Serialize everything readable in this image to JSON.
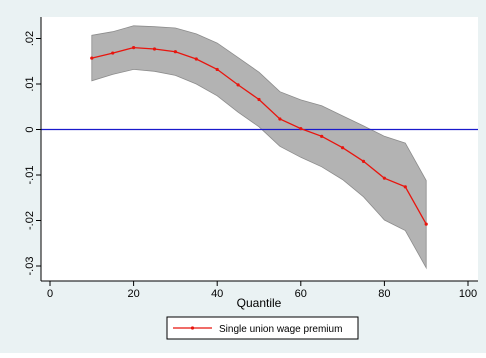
{
  "chart_data": {
    "type": "line",
    "xlabel": "Quantile",
    "ylabel": "",
    "xlim": [
      0,
      100
    ],
    "ylim": [
      -0.03,
      0.02
    ],
    "x_ticks": [
      0,
      20,
      40,
      60,
      80,
      100
    ],
    "x_tick_labels": [
      "0",
      "20",
      "40",
      "60",
      "80",
      "100"
    ],
    "y_ticks": [
      0.02,
      0.01,
      0,
      -0.01,
      -0.02,
      -0.03
    ],
    "y_tick_labels": [
      ".02",
      ".01",
      "0",
      "-.01",
      "-.02",
      "-.03"
    ],
    "reference_line_y": 0,
    "series": [
      {
        "name": "Single union wage premium",
        "x": [
          10,
          15,
          20,
          25,
          30,
          35,
          40,
          45,
          50,
          55,
          60,
          65,
          70,
          75,
          80,
          85,
          90
        ],
        "values": [
          0.0157,
          0.0168,
          0.018,
          0.0177,
          0.0171,
          0.0155,
          0.0132,
          0.0098,
          0.0066,
          0.0023,
          0.0002,
          -0.0015,
          -0.004,
          -0.007,
          -0.0107,
          -0.0126,
          -0.0208
        ],
        "ci_upper": [
          0.0207,
          0.0215,
          0.0228,
          0.0226,
          0.0223,
          0.021,
          0.019,
          0.0158,
          0.0126,
          0.0083,
          0.0065,
          0.0052,
          0.003,
          0.0008,
          -0.0015,
          -0.003,
          -0.0112
        ],
        "ci_lower": [
          0.0107,
          0.0121,
          0.0132,
          0.0128,
          0.0119,
          0.01,
          0.0074,
          0.0038,
          0.0006,
          -0.0037,
          -0.0061,
          -0.0082,
          -0.011,
          -0.0148,
          -0.0199,
          -0.0222,
          -0.0304
        ]
      }
    ],
    "legend_position": "bottom",
    "grid": false,
    "colors": {
      "background": "#eaf2f3",
      "line": "#e8150e",
      "ci_band": "#b3b3b3",
      "ci_edge": "#8c8c8c",
      "reference_line": "#1a1acc",
      "axis": "#000000"
    }
  }
}
